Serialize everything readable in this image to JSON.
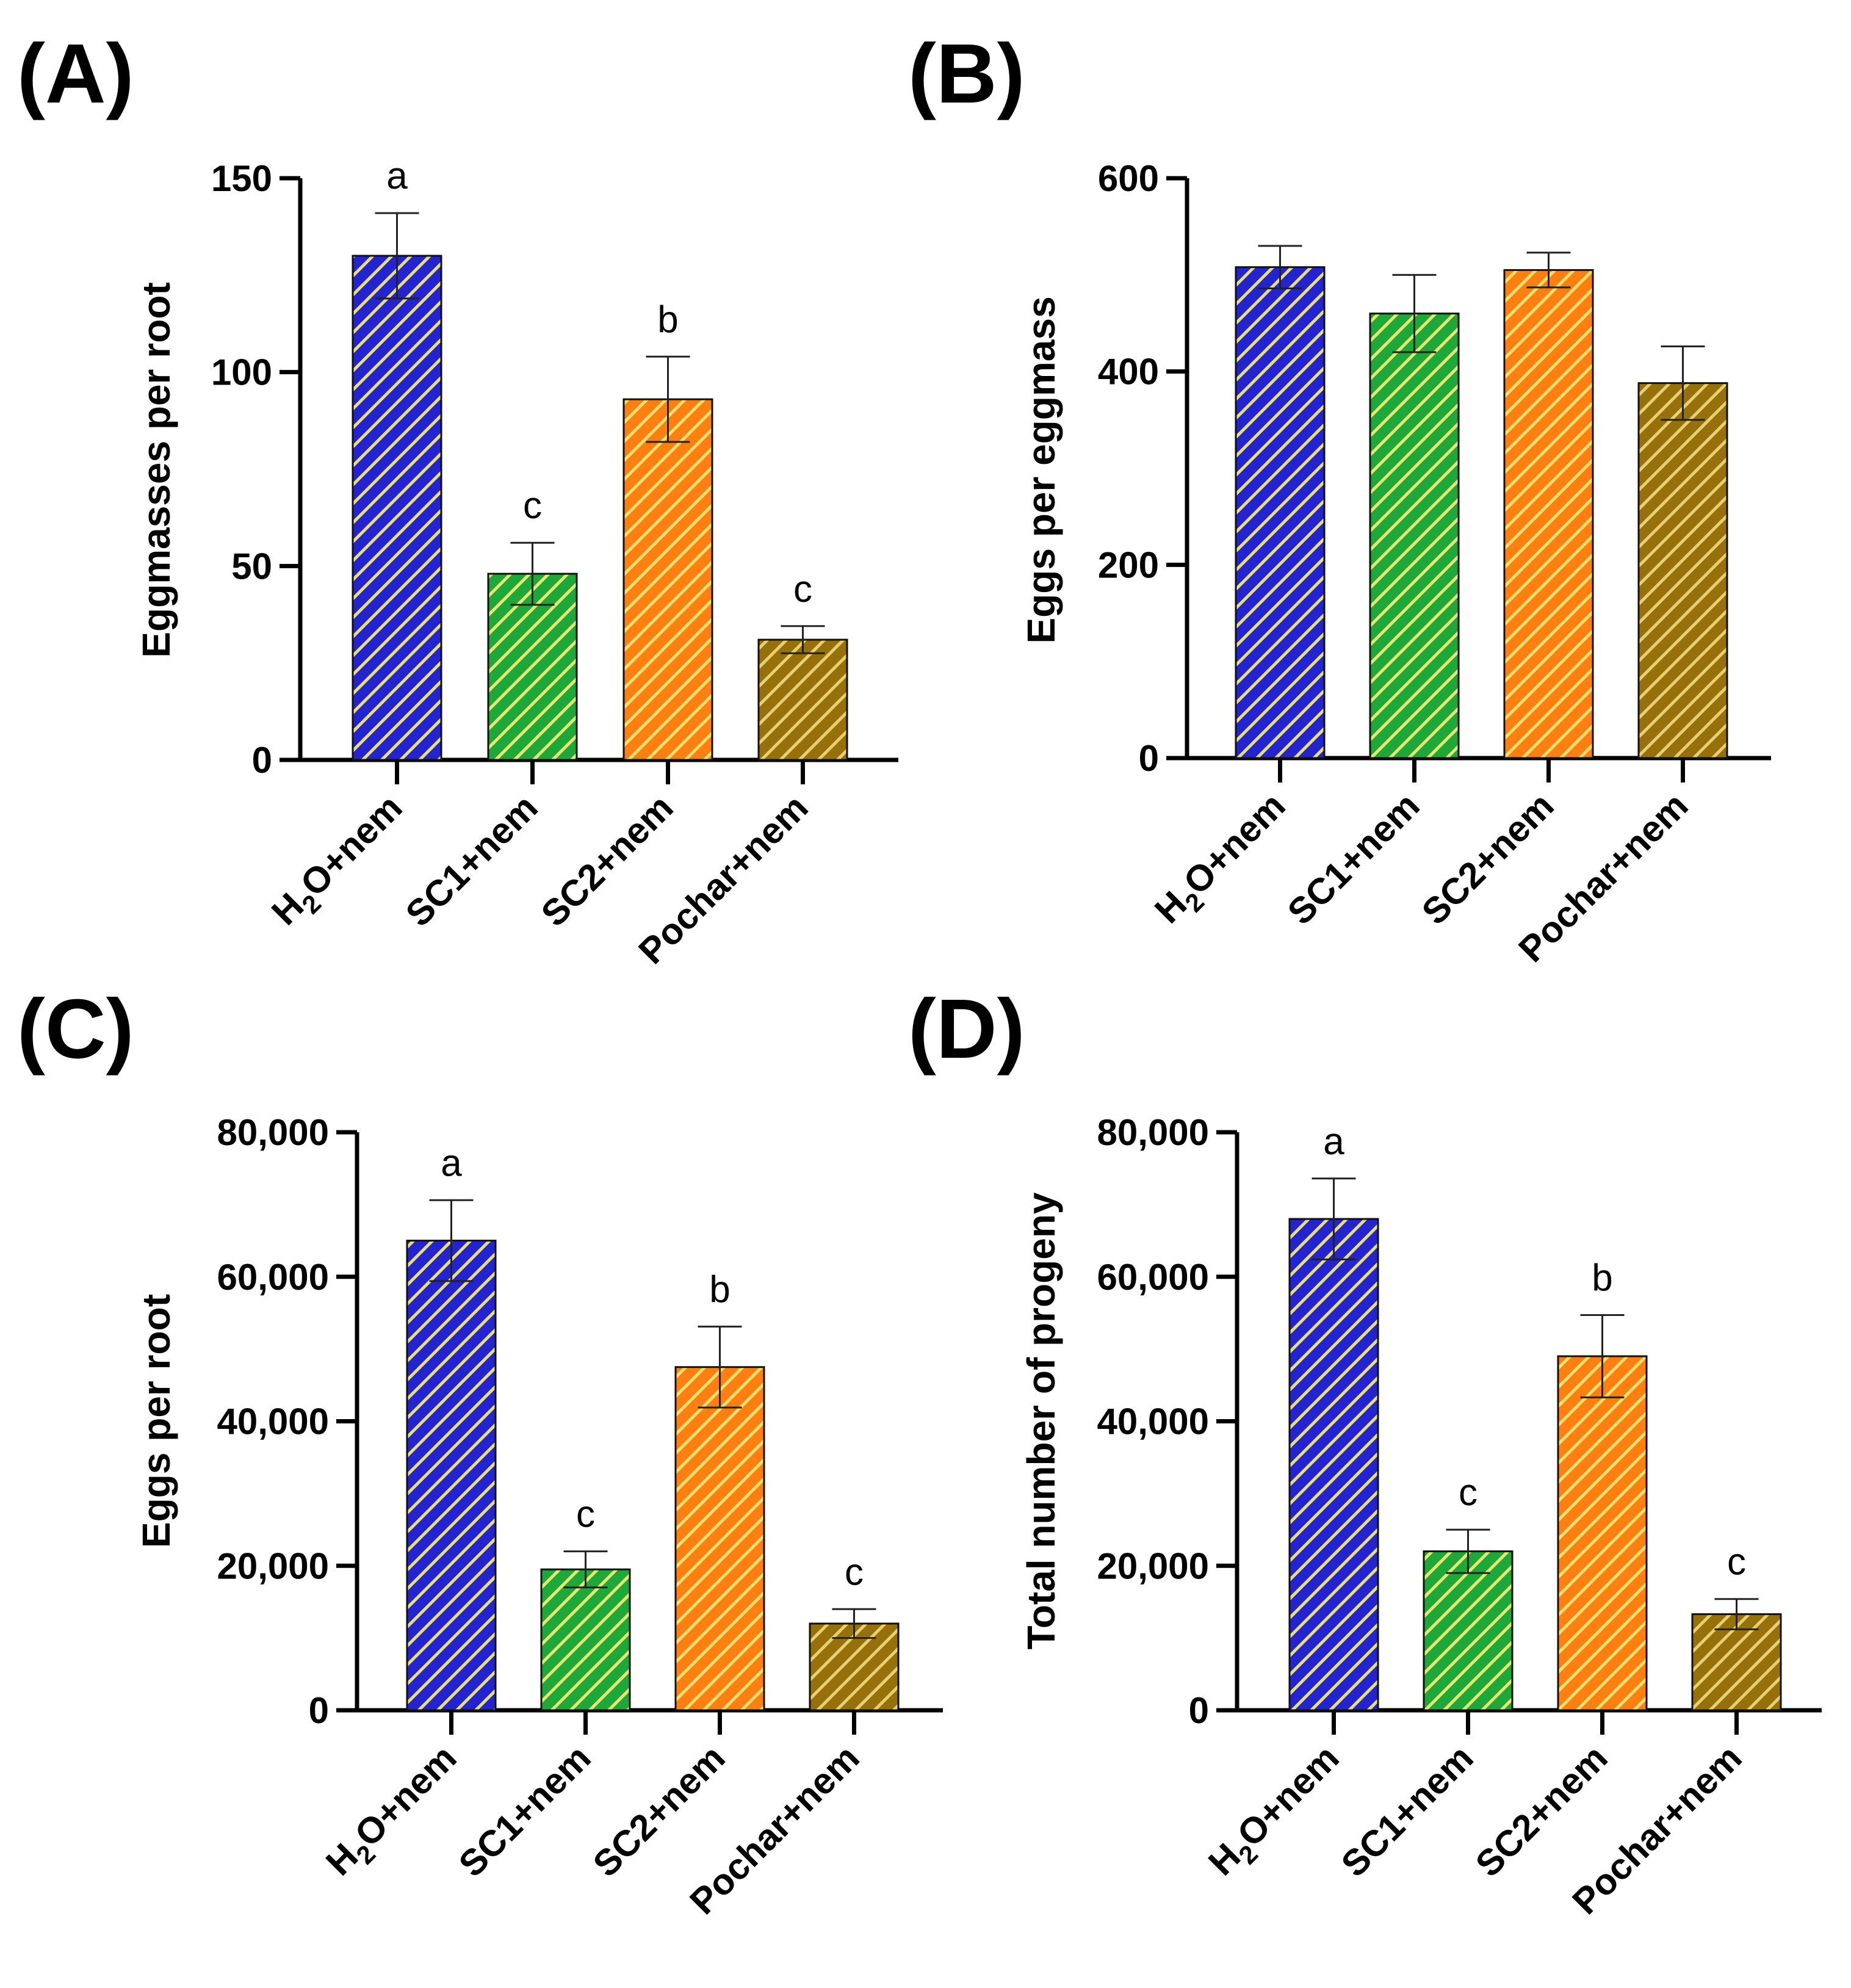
{
  "figure": {
    "panels": [
      {
        "label": "(A)",
        "ylabel": "Eggmasses per root"
      },
      {
        "label": "(B)",
        "ylabel": "Eggs per eggmass"
      },
      {
        "label": "(C)",
        "ylabel": "Eggs per root"
      },
      {
        "label": "(D)",
        "ylabel": "Total number of progeny"
      }
    ]
  },
  "colors": {
    "H2O+nem": {
      "fill": "#2323d0",
      "stripe": "#e8e070"
    },
    "SC1+nem": {
      "fill": "#1fa83a",
      "stripe": "#e8e870"
    },
    "SC2+nem": {
      "fill": "#ff7f10",
      "stripe": "#f2e070"
    },
    "Pochar+nem": {
      "fill": "#96700a",
      "stripe": "#e8d070"
    }
  },
  "chart_data": [
    {
      "type": "bar",
      "title": "(A)",
      "xlabel": "",
      "ylabel": "Eggmasses per root",
      "categories": [
        "H₂O+nem",
        "SC1+nem",
        "SC2+nem",
        "Pochar+nem"
      ],
      "values": [
        130,
        48,
        93,
        31
      ],
      "errors": [
        11,
        8,
        11,
        3.5
      ],
      "significance": [
        "a",
        "c",
        "b",
        "c"
      ],
      "ylim": [
        0,
        150
      ],
      "yticks": [
        0,
        50,
        100,
        150
      ],
      "ytick_labels": [
        "0",
        "50",
        "100",
        "150"
      ],
      "grid": false,
      "legend": "none"
    },
    {
      "type": "bar",
      "title": "(B)",
      "xlabel": "",
      "ylabel": "Eggs per eggmass",
      "categories": [
        "H₂O+nem",
        "SC1+nem",
        "SC2+nem",
        "Pochar+nem"
      ],
      "values": [
        508,
        460,
        505,
        388
      ],
      "errors": [
        22,
        40,
        18,
        38
      ],
      "significance": [
        "",
        "",
        "",
        ""
      ],
      "ylim": [
        0,
        600
      ],
      "yticks": [
        0,
        200,
        400,
        600
      ],
      "ytick_labels": [
        "0",
        "200",
        "400",
        "600"
      ],
      "grid": false,
      "legend": "none"
    },
    {
      "type": "bar",
      "title": "(C)",
      "xlabel": "",
      "ylabel": "Eggs per root",
      "categories": [
        "H₂O+nem",
        "SC1+nem",
        "SC2+nem",
        "Pochar+nem"
      ],
      "values": [
        65000,
        19500,
        47500,
        12000
      ],
      "errors": [
        5600,
        2500,
        5600,
        2000
      ],
      "significance": [
        "a",
        "c",
        "b",
        "c"
      ],
      "ylim": [
        0,
        80000
      ],
      "yticks": [
        0,
        20000,
        40000,
        60000,
        80000
      ],
      "ytick_labels": [
        "0",
        "20,000",
        "40,000",
        "60,000",
        "80,000"
      ],
      "grid": false,
      "legend": "none"
    },
    {
      "type": "bar",
      "title": "(D)",
      "xlabel": "",
      "ylabel": "Total number of progeny",
      "categories": [
        "H₂O+nem",
        "SC1+nem",
        "SC2+nem",
        "Pochar+nem"
      ],
      "values": [
        68000,
        22000,
        49000,
        13300
      ],
      "errors": [
        5600,
        3000,
        5700,
        2100
      ],
      "significance": [
        "a",
        "c",
        "b",
        "c"
      ],
      "ylim": [
        0,
        80000
      ],
      "yticks": [
        0,
        20000,
        40000,
        60000,
        80000
      ],
      "ytick_labels": [
        "0",
        "20,000",
        "40,000",
        "60,000",
        "80,000"
      ],
      "grid": false,
      "legend": "none"
    }
  ]
}
